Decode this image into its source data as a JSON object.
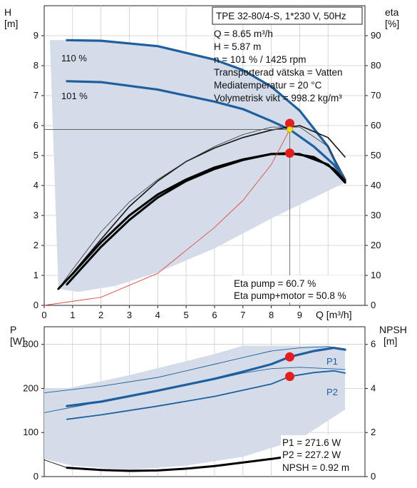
{
  "chart_data": [
    {
      "type": "line",
      "id": "head-efficiency",
      "pump_title": "TPE 32-80/4-S, 1*230 V, 50Hz",
      "y_left_label": [
        "H",
        "[m]"
      ],
      "y_right_label": [
        "eta",
        "[%]"
      ],
      "x_label": "Q [m³/h]",
      "xlim": [
        0,
        11.3
      ],
      "ylim": [
        0,
        10
      ],
      "y_right_lim": [
        0,
        100
      ],
      "x_ticks": [
        "0",
        "1",
        "2",
        "3",
        "4",
        "5",
        "6",
        "7",
        "8",
        "9"
      ],
      "y_left_ticks": [
        "0",
        "1",
        "2",
        "3",
        "4",
        "5",
        "6",
        "7",
        "8",
        "9"
      ],
      "y_right_ticks": [
        "0",
        "10",
        "20",
        "30",
        "40",
        "50",
        "60",
        "70",
        "80",
        "90"
      ],
      "info_lines": [
        "Q = 8.65 m³/h",
        "H = 5.87 m",
        "n = 101 % / 1425 rpm",
        "Transporterad vätska = Vatten",
        "Mediatemperatur = 20 °C",
        "Volymetrisk vikt = 998.2 kg/m³"
      ],
      "eta_lines": [
        "Eta pump = 60.7 %",
        "Eta pump+motor = 50.8 %"
      ],
      "curve_labels": [
        "110 %",
        "101 %"
      ],
      "series": [
        {
          "role": "region",
          "x": [
            0.2,
            0.8,
            2,
            4,
            6,
            7,
            8,
            9,
            10,
            10.6,
            10.6,
            8,
            6,
            4,
            2.5,
            1.2,
            0.5,
            0.2
          ],
          "y": [
            8.85,
            8.85,
            8.83,
            8.65,
            8.2,
            7.85,
            7.3,
            6.5,
            5.3,
            4.1,
            4.1,
            2.9,
            1.9,
            1.1,
            0.65,
            0.45,
            0.55,
            8.85
          ]
        },
        {
          "role": "head",
          "x": [
            0.8,
            2,
            4,
            6,
            7,
            8,
            9,
            10,
            10.6
          ],
          "y": [
            8.85,
            8.83,
            8.65,
            8.2,
            7.85,
            7.3,
            6.5,
            5.3,
            4.1
          ]
        },
        {
          "role": "head",
          "x": [
            0.8,
            2,
            4,
            6,
            7,
            8,
            8.65,
            9.5,
            10.2,
            10.6
          ],
          "y": [
            7.48,
            7.45,
            7.2,
            6.8,
            6.55,
            6.15,
            5.87,
            5.3,
            4.7,
            4.2
          ]
        },
        {
          "role": "eta-pump",
          "x": [
            0.8,
            2,
            3,
            4,
            5,
            6,
            7,
            8,
            9,
            10,
            10.6
          ],
          "y": [
            0.85,
            2.2,
            3.3,
            4.15,
            4.8,
            5.25,
            5.6,
            5.85,
            6.0,
            5.6,
            4.95
          ]
        },
        {
          "role": "eta-thin",
          "x": [
            0.5,
            1,
            2,
            3,
            4,
            5,
            6,
            7,
            8,
            9,
            10,
            10.6
          ],
          "y": [
            0.55,
            1.2,
            2.45,
            3.45,
            4.2,
            4.8,
            5.3,
            5.7,
            5.95,
            5.95,
            5.3,
            4.25
          ]
        },
        {
          "role": "eta-motor",
          "x": [
            0.5,
            1,
            2,
            3,
            4,
            5,
            6,
            7,
            8,
            8.65,
            9.5,
            10.2,
            10.6
          ],
          "y": [
            0.55,
            1.05,
            2.1,
            3.0,
            3.7,
            4.2,
            4.6,
            4.87,
            5.05,
            5.08,
            4.95,
            4.55,
            4.15
          ]
        },
        {
          "role": "eta-motor",
          "x": [
            0.8,
            2,
            3,
            4,
            5,
            6,
            7,
            8,
            9,
            10,
            10.6
          ],
          "y": [
            0.7,
            1.95,
            2.85,
            3.6,
            4.15,
            4.55,
            4.85,
            5.05,
            5.05,
            4.7,
            4.1
          ]
        },
        {
          "role": "system",
          "x": [
            0,
            2,
            4,
            6,
            7,
            8,
            8.65
          ],
          "y": [
            0,
            0.27,
            1.07,
            2.6,
            3.5,
            4.7,
            5.87
          ]
        }
      ],
      "markers": [
        {
          "x": 8.65,
          "y": 6.07,
          "color": "#e81c1c"
        },
        {
          "x": 8.65,
          "y": 5.08,
          "color": "#e81c1c"
        },
        {
          "x": 8.65,
          "y": 5.87,
          "color": "#f2e410"
        }
      ],
      "guide": {
        "x": 8.65,
        "y": 5.87
      }
    },
    {
      "type": "line",
      "id": "power-npsh",
      "y_left_label": [
        "P",
        "[W]"
      ],
      "y_right_label": [
        "NPSH",
        "[m]"
      ],
      "xlim": [
        0,
        11.3
      ],
      "ylim": [
        0,
        340
      ],
      "y_right_lim": [
        0,
        6.8
      ],
      "y_left_ticks": [
        "0",
        "100",
        "200",
        "300"
      ],
      "y_right_ticks": [
        "0",
        "2",
        "4",
        "6"
      ],
      "info_lines": [
        "P1 = 271.6 W",
        "P2 = 227.2 W",
        "NPSH = 0.92 m"
      ],
      "curve_labels": [
        "P1",
        "P2"
      ],
      "series": [
        {
          "role": "region",
          "x": [
            0,
            0.8,
            3,
            5,
            6,
            7,
            8,
            9,
            10,
            10.6,
            10.6,
            9,
            7,
            5,
            3,
            1,
            0
          ],
          "y": [
            200,
            200,
            230,
            262,
            278,
            297,
            297,
            297,
            297,
            288,
            152,
            85,
            45,
            25,
            15,
            25,
            40
          ]
        },
        {
          "role": "P1",
          "x": [
            0.8,
            2,
            4,
            6,
            7,
            8,
            8.65,
            9.5,
            10.2,
            10.6
          ],
          "y": [
            160,
            170,
            195,
            222,
            238,
            255,
            271.6,
            285,
            292,
            288
          ]
        },
        {
          "role": "P2",
          "x": [
            0.8,
            2,
            4,
            6,
            8,
            8.65,
            9.5,
            10.2,
            10.6
          ],
          "y": [
            130,
            140,
            160,
            182,
            210,
            227.2,
            236,
            240,
            235
          ]
        },
        {
          "role": "thin",
          "x": [
            0,
            2,
            4,
            6,
            7,
            8,
            9,
            10,
            10.6
          ],
          "y": [
            145,
            170,
            195,
            220,
            235,
            245,
            248,
            245,
            243
          ]
        },
        {
          "role": "thin",
          "x": [
            0,
            2,
            4,
            6,
            7,
            8,
            9,
            10,
            10.6
          ],
          "y": [
            190,
            205,
            225,
            255,
            270,
            285,
            292,
            295,
            290
          ]
        },
        {
          "role": "npsh",
          "x": [
            0.8,
            2,
            3,
            4,
            5,
            6,
            7,
            8,
            8.65
          ],
          "y": [
            20,
            15,
            13,
            14,
            18,
            24,
            32,
            40,
            46
          ]
        },
        {
          "role": "npsh-thin",
          "x": [
            0,
            0.8
          ],
          "y": [
            38,
            20
          ]
        }
      ],
      "markers": [
        {
          "x": 8.65,
          "y": 271.6,
          "color": "#e81c1c"
        },
        {
          "x": 8.65,
          "y": 227.2,
          "color": "#e81c1c"
        },
        {
          "x": 8.65,
          "y": 46,
          "color": "#e81c1c"
        }
      ]
    }
  ]
}
